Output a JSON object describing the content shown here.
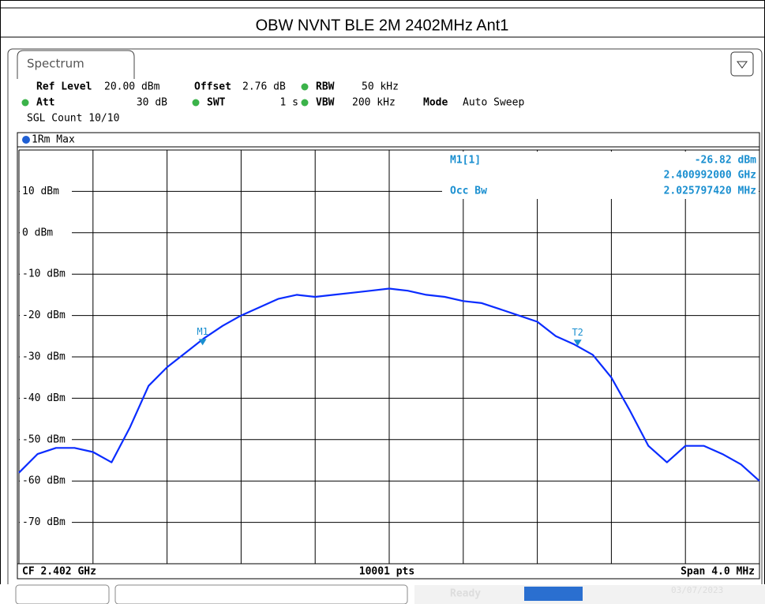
{
  "header": {
    "title": "OBW NVNT BLE 2M 2402MHz Ant1"
  },
  "tab": "Spectrum",
  "settings": [
    {
      "name": "Ref Level",
      "value": "20.00 dBm"
    },
    {
      "name": "Offset",
      "value": "2.76 dB"
    },
    {
      "name": "RBW",
      "value": "50 kHz"
    },
    {
      "name": "Att",
      "value": "30 dB"
    },
    {
      "name": "SWT",
      "value": "1 s"
    },
    {
      "name": "VBW",
      "value": "200 kHz"
    },
    {
      "name": "Mode",
      "value": "Auto Sweep"
    }
  ],
  "sgl_count": "SGL Count 10/10",
  "trace_label": "1Rm Max",
  "readout": {
    "marker": "M1[1]",
    "level": "-26.82 dBm",
    "frequency": "2.400992000 GHz",
    "occ_label": "Occ Bw",
    "occ_value": "2.025797420 MHz"
  },
  "chart_data": {
    "type": "line",
    "color": "#0a2cff",
    "xlim": [
      2.4,
      2.404
    ],
    "xticks": [
      2.4,
      2.4004,
      2.4008,
      2.4012,
      2.4016,
      2.402,
      2.4024,
      2.4028,
      2.4032,
      2.4036,
      2.404
    ],
    "ylim": [
      -80,
      20
    ],
    "yticks": [
      {
        "value": 20,
        "label": ""
      },
      {
        "value": 10,
        "label": "10 dBm"
      },
      {
        "value": 0,
        "label": "0 dBm"
      },
      {
        "value": -10,
        "label": "-10 dBm"
      },
      {
        "value": -20,
        "label": "-20 dBm"
      },
      {
        "value": -30,
        "label": "-30 dBm"
      },
      {
        "value": -40,
        "label": "-40 dBm"
      },
      {
        "value": -50,
        "label": "-50 dBm"
      },
      {
        "value": -60,
        "label": "-60 dBm"
      },
      {
        "value": -70,
        "label": "-70 dBm"
      },
      {
        "value": -80,
        "label": ""
      }
    ],
    "x": [
      2.4,
      2.4001,
      2.4002,
      2.4003,
      2.4004,
      2.4005,
      2.4006,
      2.4007,
      2.4008,
      2.4009,
      2.401,
      2.4011,
      2.4012,
      2.4013,
      2.4014,
      2.4015,
      2.4016,
      2.4017,
      2.4018,
      2.4019,
      2.402,
      2.4021,
      2.4022,
      2.4023,
      2.4024,
      2.4025,
      2.4026,
      2.4027,
      2.4028,
      2.4029,
      2.403,
      2.4031,
      2.4032,
      2.4033,
      2.4034,
      2.4035,
      2.4036,
      2.4037,
      2.4038,
      2.4039,
      2.404
    ],
    "values": [
      -58,
      -53.5,
      -52,
      -52,
      -53,
      -55.5,
      -47,
      -37,
      -32.5,
      -29,
      -25.5,
      -22.5,
      -20,
      -18,
      -16,
      -15,
      -15.5,
      -15,
      -14.5,
      -14,
      -13.5,
      -14,
      -15,
      -15.5,
      -16.5,
      -17,
      -18.5,
      -20,
      -21.5,
      -25,
      -27,
      -29.5,
      -35,
      -43,
      -51.5,
      -55.5,
      -51.5,
      -51.5,
      -53.5,
      -56,
      -60
    ],
    "markers": [
      {
        "label": "M1",
        "x": 2.400992,
        "y": -26.82
      },
      {
        "label": "T2",
        "x": 2.4030178,
        "y": -27
      }
    ]
  },
  "footer": {
    "center_freq": "CF 2.402 GHz",
    "points": "10001 pts",
    "span": "Span 4.0 MHz"
  },
  "status": {
    "state": "Ready",
    "date": "03/07/2023"
  }
}
